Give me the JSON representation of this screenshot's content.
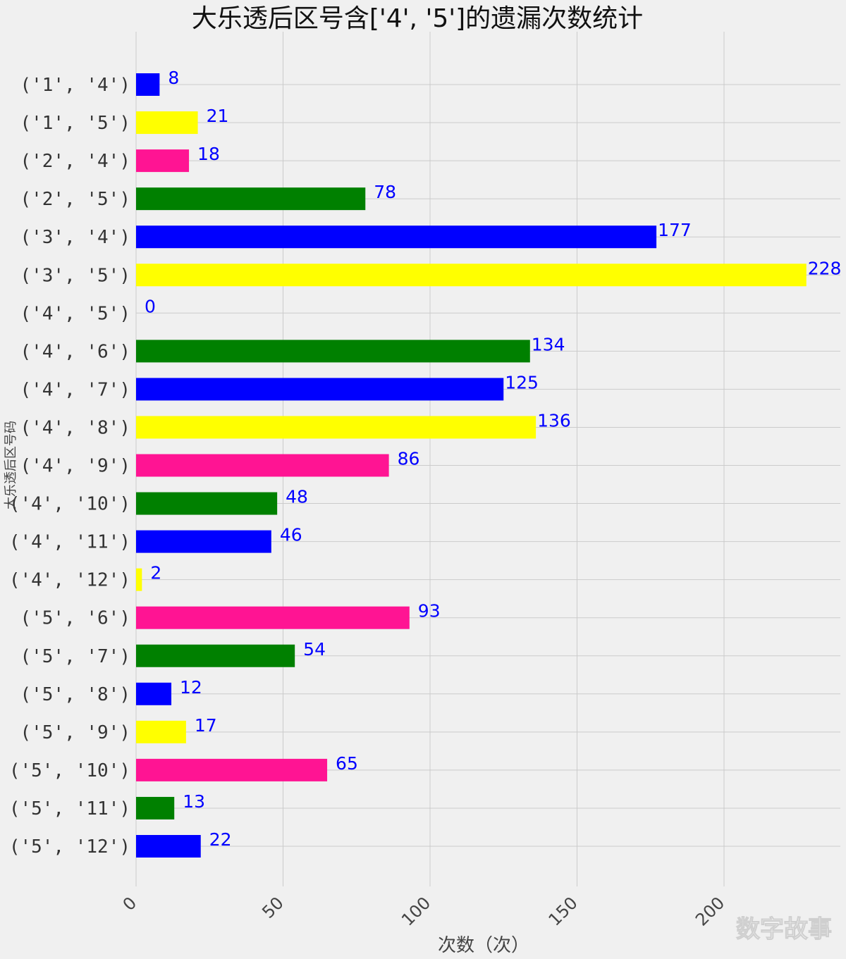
{
  "chart_data": {
    "type": "bar",
    "orientation": "horizontal",
    "title": "大乐透后区号含['4', '5']的遗漏次数统计",
    "xlabel": "次数（次）",
    "ylabel": "大乐透后区号码",
    "categories": [
      "('1', '4')",
      "('1', '5')",
      "('2', '4')",
      "('2', '5')",
      "('3', '4')",
      "('3', '5')",
      "('4', '5')",
      "('4', '6')",
      "('4', '7')",
      "('4', '8')",
      "('4', '9')",
      "('4', '10')",
      "('4', '11')",
      "('4', '12')",
      "('5', '6')",
      "('5', '7')",
      "('5', '8')",
      "('5', '9')",
      "('5', '10')",
      "('5', '11')",
      "('5', '12')"
    ],
    "values": [
      8,
      21,
      18,
      78,
      177,
      228,
      0,
      134,
      125,
      136,
      86,
      48,
      46,
      2,
      93,
      54,
      12,
      17,
      65,
      13,
      22
    ],
    "bar_colors": [
      "#0000ff",
      "#ffff00",
      "#ff1493",
      "#008000"
    ],
    "data_label_color": "#0000ff",
    "xticks": [
      0,
      50,
      100,
      150,
      200
    ],
    "xtick_labels": [
      "0",
      "50",
      "100",
      "150",
      "200"
    ],
    "xlim": [
      0,
      240
    ],
    "grid": true,
    "background": "#f0f0f0",
    "style": "fivethirtyeight"
  },
  "watermark": "数字故事"
}
